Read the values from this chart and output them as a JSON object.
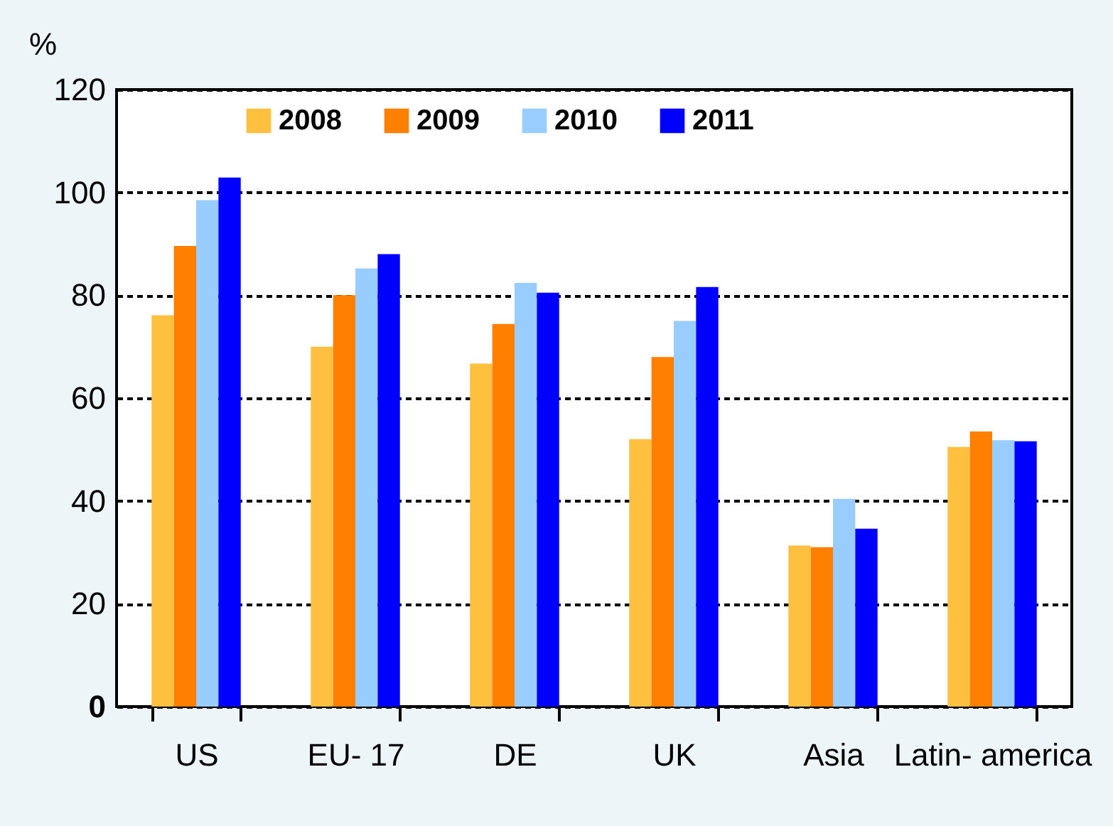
{
  "chart_data": {
    "type": "bar",
    "ylabel": "%",
    "categories": [
      "US",
      "EU- 17",
      "DE",
      "UK",
      "Asia",
      "Latin- america"
    ],
    "series": [
      {
        "name": "2008",
        "color": "#ffc040",
        "values": [
          76.1,
          70,
          66.7,
          52,
          31.3,
          50.5
        ]
      },
      {
        "name": "2009",
        "color": "#ff8000",
        "values": [
          89.6,
          80,
          74.4,
          68,
          31,
          53.5
        ]
      },
      {
        "name": "2010",
        "color": "#99ccff",
        "values": [
          98.5,
          85.2,
          82.4,
          75,
          40.4,
          51.8
        ]
      },
      {
        "name": "2011",
        "color": "#0000ff",
        "values": [
          102.9,
          88,
          80.5,
          81.6,
          34.6,
          51.6
        ]
      }
    ],
    "ylim": [
      0,
      120
    ],
    "yticks": [
      0,
      20,
      40,
      60,
      80,
      100,
      120
    ],
    "grid": "y",
    "legend": "top"
  }
}
